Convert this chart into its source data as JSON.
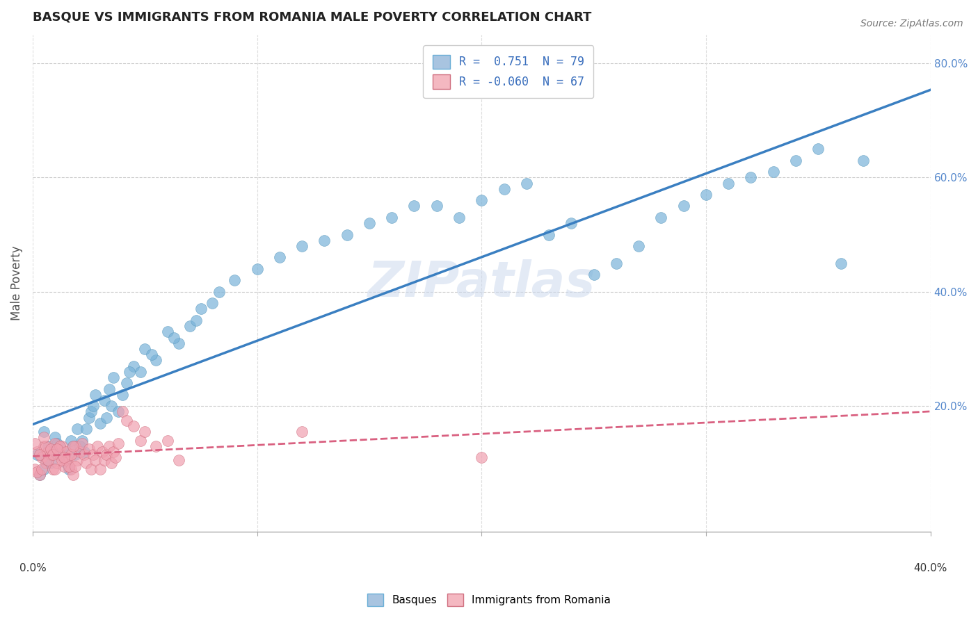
{
  "title": "BASQUE VS IMMIGRANTS FROM ROMANIA MALE POVERTY CORRELATION CHART",
  "source": "Source: ZipAtlas.com",
  "ylabel": "Male Poverty",
  "xlim": [
    0.0,
    0.4
  ],
  "ylim": [
    -0.02,
    0.85
  ],
  "legend_entries": [
    {
      "label": "R =  0.751  N = 79",
      "color": "#a8c4e0",
      "edge_color": "#6aaed6"
    },
    {
      "label": "R = -0.060  N = 67",
      "color": "#f4b8c1",
      "edge_color": "#d07080"
    }
  ],
  "basque_color": "#7ab3d9",
  "basque_edge": "#5a9abf",
  "romania_color": "#f0a0b0",
  "romania_edge": "#d07080",
  "trend_blue": "#3a7fc1",
  "trend_pink": "#d96080",
  "watermark": "ZIPatlas",
  "ytick_vals": [
    0.2,
    0.4,
    0.6,
    0.8
  ],
  "ytick_labels": [
    "20.0%",
    "40.0%",
    "60.0%",
    "80.0%"
  ],
  "xtick_vals": [
    0.0,
    0.1,
    0.2,
    0.3,
    0.4
  ],
  "bottom_legend_labels": [
    "Basques",
    "Immigrants from Romania"
  ],
  "basque_points": [
    [
      0.002,
      0.115
    ],
    [
      0.003,
      0.08
    ],
    [
      0.005,
      0.09
    ],
    [
      0.007,
      0.13
    ],
    [
      0.008,
      0.1
    ],
    [
      0.009,
      0.12
    ],
    [
      0.01,
      0.145
    ],
    [
      0.012,
      0.13
    ],
    [
      0.013,
      0.11
    ],
    [
      0.015,
      0.1
    ],
    [
      0.016,
      0.09
    ],
    [
      0.018,
      0.13
    ],
    [
      0.019,
      0.115
    ],
    [
      0.02,
      0.16
    ],
    [
      0.022,
      0.14
    ],
    [
      0.023,
      0.12
    ],
    [
      0.024,
      0.16
    ],
    [
      0.025,
      0.18
    ],
    [
      0.026,
      0.19
    ],
    [
      0.028,
      0.22
    ],
    [
      0.03,
      0.17
    ],
    [
      0.032,
      0.21
    ],
    [
      0.034,
      0.23
    ],
    [
      0.035,
      0.2
    ],
    [
      0.036,
      0.25
    ],
    [
      0.038,
      0.19
    ],
    [
      0.04,
      0.22
    ],
    [
      0.042,
      0.24
    ],
    [
      0.045,
      0.27
    ],
    [
      0.048,
      0.26
    ],
    [
      0.05,
      0.3
    ],
    [
      0.055,
      0.28
    ],
    [
      0.06,
      0.33
    ],
    [
      0.065,
      0.31
    ],
    [
      0.07,
      0.34
    ],
    [
      0.075,
      0.37
    ],
    [
      0.08,
      0.38
    ],
    [
      0.09,
      0.42
    ],
    [
      0.1,
      0.44
    ],
    [
      0.11,
      0.46
    ],
    [
      0.12,
      0.48
    ],
    [
      0.13,
      0.49
    ],
    [
      0.14,
      0.5
    ],
    [
      0.15,
      0.52
    ],
    [
      0.16,
      0.53
    ],
    [
      0.17,
      0.55
    ],
    [
      0.18,
      0.55
    ],
    [
      0.19,
      0.53
    ],
    [
      0.2,
      0.56
    ],
    [
      0.21,
      0.58
    ],
    [
      0.22,
      0.59
    ],
    [
      0.23,
      0.5
    ],
    [
      0.24,
      0.52
    ],
    [
      0.25,
      0.43
    ],
    [
      0.26,
      0.45
    ],
    [
      0.27,
      0.48
    ],
    [
      0.28,
      0.53
    ],
    [
      0.29,
      0.55
    ],
    [
      0.3,
      0.57
    ],
    [
      0.31,
      0.59
    ],
    [
      0.32,
      0.6
    ],
    [
      0.33,
      0.61
    ],
    [
      0.34,
      0.63
    ],
    [
      0.35,
      0.65
    ],
    [
      0.36,
      0.45
    ],
    [
      0.005,
      0.155
    ],
    [
      0.006,
      0.105
    ],
    [
      0.011,
      0.135
    ],
    [
      0.014,
      0.12
    ],
    [
      0.017,
      0.14
    ],
    [
      0.021,
      0.13
    ],
    [
      0.027,
      0.2
    ],
    [
      0.033,
      0.18
    ],
    [
      0.043,
      0.26
    ],
    [
      0.053,
      0.29
    ],
    [
      0.063,
      0.32
    ],
    [
      0.073,
      0.35
    ],
    [
      0.083,
      0.4
    ],
    [
      0.37,
      0.63
    ]
  ],
  "romania_points": [
    [
      0.001,
      0.09
    ],
    [
      0.002,
      0.12
    ],
    [
      0.003,
      0.08
    ],
    [
      0.004,
      0.11
    ],
    [
      0.005,
      0.13
    ],
    [
      0.006,
      0.1
    ],
    [
      0.007,
      0.12
    ],
    [
      0.008,
      0.115
    ],
    [
      0.009,
      0.09
    ],
    [
      0.01,
      0.135
    ],
    [
      0.011,
      0.1
    ],
    [
      0.012,
      0.115
    ],
    [
      0.013,
      0.13
    ],
    [
      0.014,
      0.095
    ],
    [
      0.015,
      0.105
    ],
    [
      0.016,
      0.11
    ],
    [
      0.017,
      0.09
    ],
    [
      0.018,
      0.08
    ],
    [
      0.019,
      0.13
    ],
    [
      0.02,
      0.105
    ],
    [
      0.021,
      0.12
    ],
    [
      0.022,
      0.135
    ],
    [
      0.023,
      0.115
    ],
    [
      0.024,
      0.1
    ],
    [
      0.025,
      0.125
    ],
    [
      0.026,
      0.09
    ],
    [
      0.027,
      0.115
    ],
    [
      0.028,
      0.105
    ],
    [
      0.029,
      0.13
    ],
    [
      0.03,
      0.09
    ],
    [
      0.031,
      0.12
    ],
    [
      0.032,
      0.105
    ],
    [
      0.033,
      0.115
    ],
    [
      0.034,
      0.13
    ],
    [
      0.035,
      0.1
    ],
    [
      0.036,
      0.12
    ],
    [
      0.037,
      0.11
    ],
    [
      0.038,
      0.135
    ],
    [
      0.04,
      0.19
    ],
    [
      0.042,
      0.175
    ],
    [
      0.045,
      0.165
    ],
    [
      0.048,
      0.14
    ],
    [
      0.05,
      0.155
    ],
    [
      0.055,
      0.13
    ],
    [
      0.06,
      0.14
    ],
    [
      0.065,
      0.105
    ],
    [
      0.001,
      0.135
    ],
    [
      0.002,
      0.085
    ],
    [
      0.003,
      0.115
    ],
    [
      0.004,
      0.09
    ],
    [
      0.006,
      0.13
    ],
    [
      0.007,
      0.105
    ],
    [
      0.008,
      0.125
    ],
    [
      0.009,
      0.115
    ],
    [
      0.01,
      0.09
    ],
    [
      0.012,
      0.13
    ],
    [
      0.013,
      0.105
    ],
    [
      0.015,
      0.12
    ],
    [
      0.016,
      0.095
    ],
    [
      0.017,
      0.115
    ],
    [
      0.018,
      0.13
    ],
    [
      0.12,
      0.155
    ],
    [
      0.2,
      0.11
    ],
    [
      0.005,
      0.145
    ],
    [
      0.011,
      0.125
    ],
    [
      0.014,
      0.11
    ],
    [
      0.019,
      0.095
    ]
  ]
}
